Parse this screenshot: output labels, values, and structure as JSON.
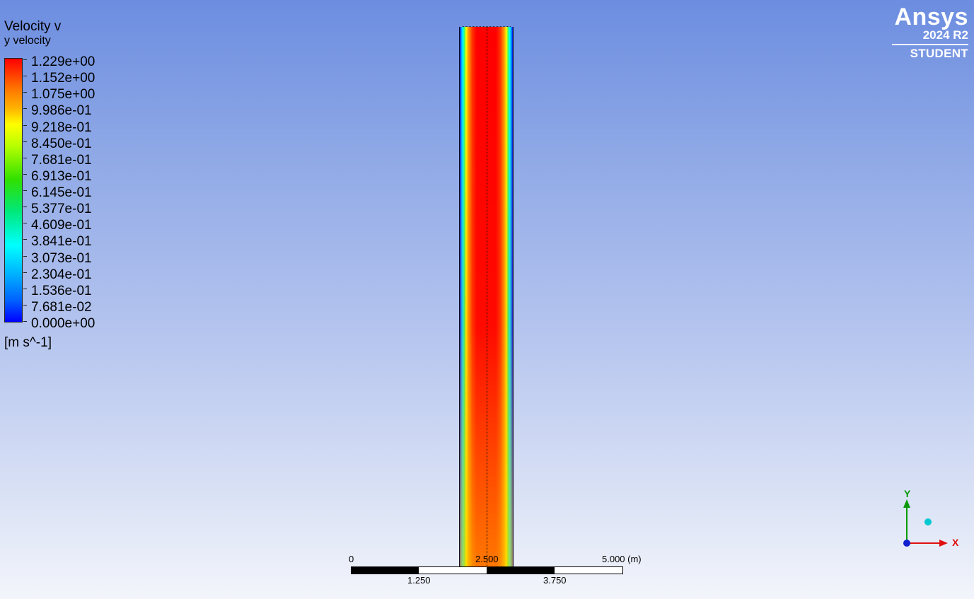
{
  "legend": {
    "title": "Velocity v",
    "subtitle": "y velocity",
    "labels": [
      "1.229e+00",
      "1.152e+00",
      "1.075e+00",
      "9.986e-01",
      "9.218e-01",
      "8.450e-01",
      "7.681e-01",
      "6.913e-01",
      "6.145e-01",
      "5.377e-01",
      "4.609e-01",
      "3.841e-01",
      "3.073e-01",
      "2.304e-01",
      "1.536e-01",
      "7.681e-02",
      "0.000e+00"
    ],
    "units": "[m s^-1]",
    "max_value": 1.229,
    "min_value": 0.0,
    "colormap": [
      "#ff0000",
      "#ffff00",
      "#00ff00",
      "#00ffff",
      "#0000ff"
    ]
  },
  "brand": {
    "name": "Ansys",
    "version": "2024 R2",
    "edition": "STUDENT"
  },
  "scale_bar": {
    "top_labels": [
      "0",
      "2.500",
      "5.000  (m)"
    ],
    "bottom_labels": [
      "1.250",
      "3.750"
    ]
  },
  "triad": {
    "y_label": "Y",
    "x_label": "X",
    "y_color": "#0a9a0a",
    "x_color": "#e01010",
    "origin_color": "#1020d0",
    "z_color": "#00c8d0"
  },
  "colors": {
    "background_top": "#6c8de0",
    "background_bottom": "#f3f5fb",
    "brand_text": "#ffffff"
  }
}
